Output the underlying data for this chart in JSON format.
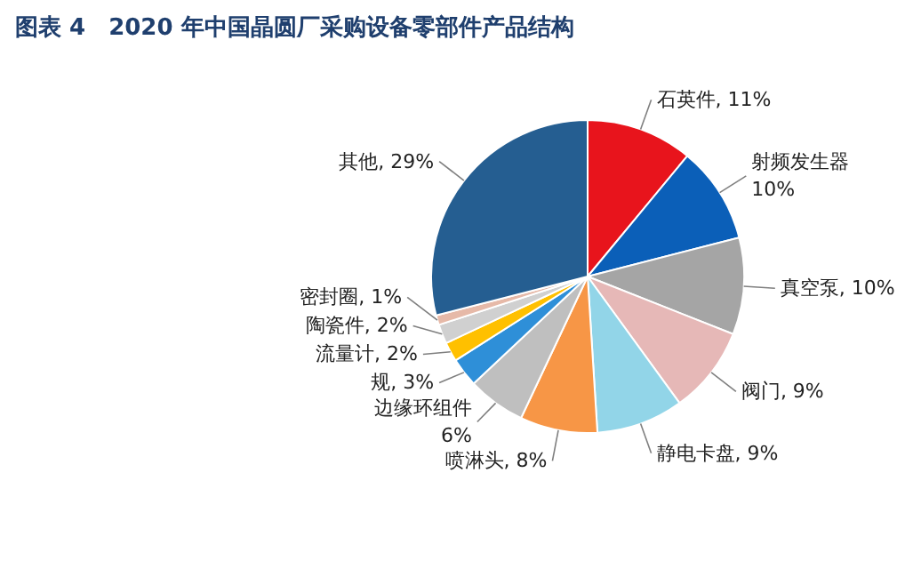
{
  "chart_data": {
    "type": "pie",
    "title": "图表 4　2020 年中国晶圆厂采购设备零部件产品结构",
    "categories": [
      "石英件",
      "射频发生器",
      "真空泵",
      "阀门",
      "静电卡盘",
      "喷淋头",
      "边缘环组件",
      "规",
      "流量计",
      "陶瓷件",
      "密封圈",
      "其他"
    ],
    "values": [
      11,
      10,
      10,
      9,
      9,
      8,
      6,
      3,
      2,
      2,
      1,
      29
    ],
    "value_labels": [
      "11%",
      "10%",
      "10%",
      "9%",
      "9%",
      "8%",
      "6%",
      "3%",
      "2%",
      "2%",
      "1%",
      "29%"
    ],
    "colors": [
      "#e8141c",
      "#0b5fb8",
      "#a5a5a5",
      "#e6b8b7",
      "#92d5e8",
      "#f79646",
      "#bfbfbf",
      "#2e8fd8",
      "#ffc000",
      "#d0d0d0",
      "#e6b9a8",
      "#255e91"
    ]
  }
}
